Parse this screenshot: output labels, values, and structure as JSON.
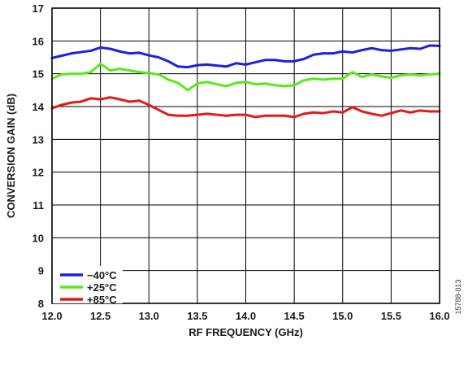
{
  "chart_data": {
    "type": "line",
    "title": "",
    "xlabel": "RF FREQUENCY (GHz)",
    "ylabel": "CONVERSION GAIN (dB)",
    "xlim": [
      12.0,
      16.0
    ],
    "ylim": [
      8,
      17
    ],
    "xticks": [
      "12.0",
      "12.5",
      "13.0",
      "13.5",
      "14.0",
      "14.5",
      "15.0",
      "15.5",
      "16.0"
    ],
    "yticks": [
      "8",
      "9",
      "10",
      "11",
      "12",
      "13",
      "14",
      "15",
      "16",
      "17"
    ],
    "grid": true,
    "legend_position": "bottom-left",
    "figure_id": "15788-013",
    "x": [
      12.0,
      12.1,
      12.2,
      12.3,
      12.4,
      12.5,
      12.6,
      12.7,
      12.8,
      12.9,
      13.0,
      13.1,
      13.2,
      13.3,
      13.4,
      13.5,
      13.6,
      13.7,
      13.8,
      13.9,
      14.0,
      14.1,
      14.2,
      14.3,
      14.4,
      14.5,
      14.6,
      14.7,
      14.8,
      14.9,
      15.0,
      15.1,
      15.2,
      15.3,
      15.4,
      15.5,
      15.6,
      15.7,
      15.8,
      15.9,
      16.0
    ],
    "series": [
      {
        "name": "−40°C",
        "color": "#1f1fe0",
        "values": [
          15.48,
          15.55,
          15.62,
          15.66,
          15.7,
          15.8,
          15.76,
          15.68,
          15.62,
          15.64,
          15.56,
          15.5,
          15.38,
          15.22,
          15.2,
          15.26,
          15.28,
          15.25,
          15.22,
          15.32,
          15.28,
          15.35,
          15.42,
          15.42,
          15.38,
          15.38,
          15.45,
          15.58,
          15.62,
          15.62,
          15.68,
          15.65,
          15.72,
          15.78,
          15.72,
          15.7,
          15.74,
          15.78,
          15.76,
          15.86,
          15.85
        ]
      },
      {
        "name": "+25°C",
        "color": "#5ce61e",
        "values": [
          14.85,
          14.98,
          15.0,
          15.0,
          15.05,
          15.3,
          15.1,
          15.15,
          15.1,
          15.05,
          15.02,
          14.98,
          14.82,
          14.72,
          14.5,
          14.7,
          14.75,
          14.68,
          14.62,
          14.72,
          14.75,
          14.68,
          14.7,
          14.65,
          14.62,
          14.65,
          14.8,
          14.85,
          14.82,
          14.85,
          14.85,
          15.05,
          14.9,
          14.98,
          14.92,
          14.88,
          14.95,
          14.98,
          14.95,
          14.98,
          15.0
        ]
      },
      {
        "name": "+85°C",
        "color": "#e01b1b",
        "values": [
          13.95,
          14.05,
          14.12,
          14.15,
          14.25,
          14.22,
          14.28,
          14.22,
          14.15,
          14.18,
          14.05,
          13.9,
          13.75,
          13.72,
          13.72,
          13.75,
          13.78,
          13.75,
          13.72,
          13.75,
          13.75,
          13.68,
          13.72,
          13.72,
          13.72,
          13.68,
          13.78,
          13.82,
          13.8,
          13.85,
          13.82,
          13.98,
          13.85,
          13.78,
          13.72,
          13.8,
          13.88,
          13.82,
          13.88,
          13.85,
          13.85
        ]
      }
    ]
  }
}
